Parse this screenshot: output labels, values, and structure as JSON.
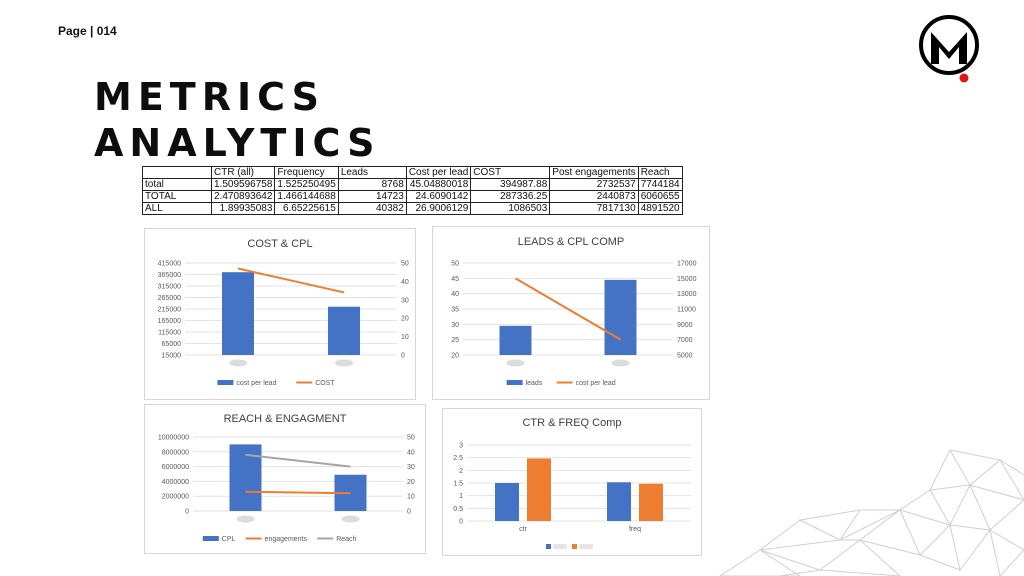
{
  "header": {
    "page_label": "Page | 014",
    "title_line1": "METRICS",
    "title_line2": "ANALYTICS",
    "logo_letter": "M"
  },
  "table": {
    "headers": [
      "",
      "CTR (all)",
      "Frequency",
      "Leads",
      "Cost per lead",
      "COST",
      "Post engagements",
      "Reach"
    ],
    "rows": [
      [
        "total",
        "1.509596758",
        "1.525250495",
        "8768",
        "45.04880018",
        "394987.88",
        "2732537",
        "7744184"
      ],
      [
        "TOTAL",
        "2.470893642",
        "1.466144688",
        "14723",
        "24.6090142",
        "287336.25",
        "2440873",
        "6060655"
      ],
      [
        "ALL",
        "1.89935083",
        "6.65225615",
        "40382",
        "26.9006129",
        "1086503",
        "7817130",
        "4891520"
      ]
    ]
  },
  "chart_data": [
    {
      "type": "bar",
      "title": "COST & CPL",
      "categories": [
        "",
        ""
      ],
      "series": [
        {
          "name": "cost per lead",
          "kind": "bar",
          "axis": "left",
          "values": [
            375000,
            225000
          ],
          "color": "#4472c4"
        },
        {
          "name": "COST",
          "kind": "line",
          "axis": "right",
          "values": [
            47,
            34
          ],
          "color": "#ed7d31"
        }
      ],
      "left_ticks": [
        "415000",
        "365000",
        "315000",
        "265000",
        "215000",
        "165000",
        "115000",
        "65000",
        "15000"
      ],
      "right_ticks": [
        "50",
        "40",
        "30",
        "20",
        "10",
        "0"
      ],
      "ylim_left": [
        15000,
        415000
      ],
      "ylim_right": [
        0,
        50
      ],
      "legend": "bottom"
    },
    {
      "type": "bar",
      "title": "LEADS & CPL COMP",
      "categories": [
        "",
        ""
      ],
      "series": [
        {
          "name": "leads",
          "kind": "bar",
          "axis": "left",
          "values": [
            29.5,
            44.5
          ],
          "color": "#4472c4"
        },
        {
          "name": "cost per lead",
          "kind": "line",
          "axis": "right",
          "values": [
            15000,
            7000
          ],
          "color": "#ed7d31"
        }
      ],
      "left_ticks": [
        "50",
        "45",
        "40",
        "35",
        "30",
        "25",
        "20"
      ],
      "right_ticks": [
        "17000",
        "15000",
        "13000",
        "11000",
        "9000",
        "7000",
        "5000"
      ],
      "ylim_left": [
        20,
        50
      ],
      "ylim_right": [
        5000,
        17000
      ],
      "legend": "bottom"
    },
    {
      "type": "bar",
      "title": "REACH & ENGAGMENT",
      "categories": [
        "",
        ""
      ],
      "series": [
        {
          "name": "CPL",
          "kind": "bar",
          "axis": "left",
          "values": [
            9000000,
            4900000
          ],
          "color": "#4472c4"
        },
        {
          "name": "engagements",
          "kind": "line",
          "axis": "right",
          "values": [
            13,
            12
          ],
          "color": "#ed7d31"
        },
        {
          "name": "Reach",
          "kind": "line",
          "axis": "right",
          "values": [
            38,
            30
          ],
          "color": "#a5a5a5"
        }
      ],
      "left_ticks": [
        "10000000",
        "8000000",
        "6000000",
        "4000000",
        "2000000",
        "0"
      ],
      "right_ticks": [
        "50",
        "40",
        "30",
        "20",
        "10",
        "0"
      ],
      "ylim_left": [
        0,
        10000000
      ],
      "ylim_right": [
        0,
        50
      ],
      "legend": "bottom"
    },
    {
      "type": "bar",
      "title": "CTR & FREQ Comp",
      "categories": [
        "ctr",
        "freq"
      ],
      "series": [
        {
          "name": "",
          "kind": "bar",
          "values": [
            1.5,
            1.53
          ],
          "color": "#4472c4"
        },
        {
          "name": "",
          "kind": "bar",
          "values": [
            2.47,
            1.47
          ],
          "color": "#ed7d31"
        }
      ],
      "left_ticks": [
        "3",
        "2.5",
        "2",
        "1.5",
        "1",
        "0.5",
        "0"
      ],
      "ylim_left": [
        0,
        3
      ],
      "legend": "bottom"
    }
  ]
}
